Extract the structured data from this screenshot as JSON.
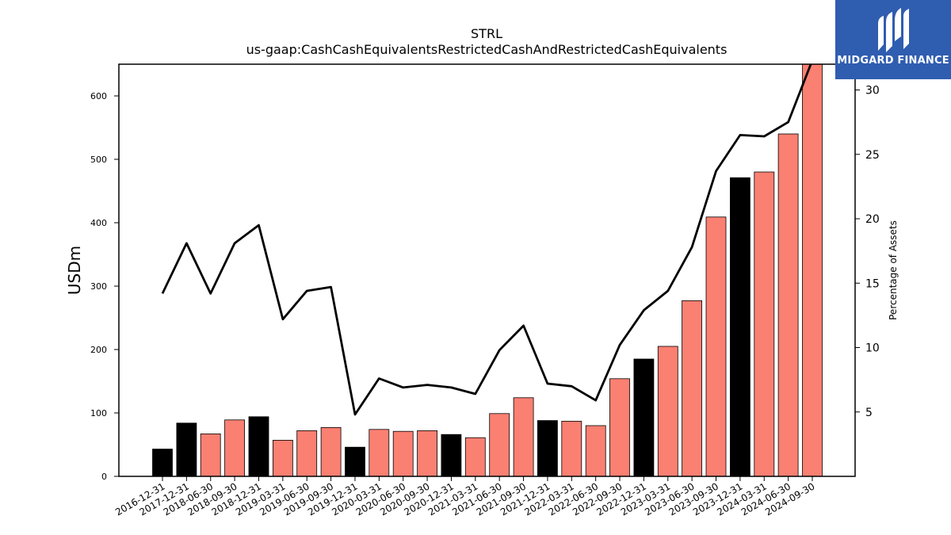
{
  "chart_data": {
    "type": "bar",
    "title": "STRL",
    "subtitle": "us-gaap:CashCashEquivalentsRestrictedCashAndRestrictedCashEquivalents",
    "ylabel": "USDm",
    "y2label": "Percentage of Assets",
    "ylim": [
      0,
      650
    ],
    "y2lim": [
      0,
      32
    ],
    "yticks": [
      0,
      100,
      200,
      300,
      400,
      500,
      600
    ],
    "y2ticks": [
      5,
      10,
      15,
      20,
      25,
      30
    ],
    "categories": [
      "2016-12-31",
      "2017-12-31",
      "2018-06-30",
      "2018-09-30",
      "2018-12-31",
      "2019-03-31",
      "2019-06-30",
      "2019-09-30",
      "2019-12-31",
      "2020-03-31",
      "2020-06-30",
      "2020-09-30",
      "2020-12-31",
      "2021-03-31",
      "2021-06-30",
      "2021-09-30",
      "2021-12-31",
      "2022-03-31",
      "2022-06-30",
      "2022-09-30",
      "2022-12-31",
      "2023-03-31",
      "2023-06-30",
      "2023-09-30",
      "2023-12-31",
      "2024-03-31",
      "2024-06-30",
      "2024-09-30"
    ],
    "series": [
      {
        "values": [
          43,
          84,
          67,
          89,
          94,
          57,
          72,
          77,
          46,
          74,
          71,
          72,
          66,
          61,
          99,
          124,
          88,
          87,
          80,
          154,
          185,
          205,
          277,
          409,
          471,
          480,
          540,
          650
        ],
        "colors": [
          "#000000",
          "#000000",
          "#fa8072",
          "#fa8072",
          "#000000",
          "#fa8072",
          "#fa8072",
          "#fa8072",
          "#000000",
          "#fa8072",
          "#fa8072",
          "#fa8072",
          "#000000",
          "#fa8072",
          "#fa8072",
          "#fa8072",
          "#000000",
          "#fa8072",
          "#fa8072",
          "#fa8072",
          "#000000",
          "#fa8072",
          "#fa8072",
          "#fa8072",
          "#000000",
          "#fa8072",
          "#fa8072",
          "#fa8072"
        ]
      },
      {
        "axis": "right",
        "type": "line",
        "color": "#000000",
        "values": [
          14.2,
          18.1,
          14.2,
          18.1,
          19.5,
          12.2,
          14.4,
          14.7,
          4.8,
          7.6,
          6.9,
          7.1,
          6.9,
          6.4,
          9.8,
          11.7,
          7.2,
          7.0,
          5.9,
          10.2,
          12.9,
          14.4,
          17.8,
          23.7,
          26.5,
          26.4,
          27.5,
          32.3
        ]
      }
    ],
    "grid": false,
    "legend": "none"
  },
  "logo": {
    "text": "MIDGARD FINANCE"
  }
}
